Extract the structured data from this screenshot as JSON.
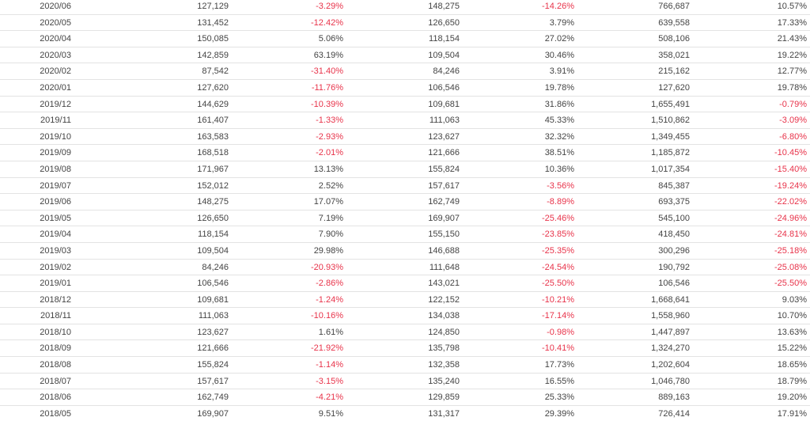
{
  "colors": {
    "negative": "#e8334a",
    "text": "#444444",
    "border": "#e3e3e3"
  },
  "rows": [
    [
      "2020/06",
      "127,129",
      "-3.29%",
      "148,275",
      "-14.26%",
      "766,687",
      "10.57%"
    ],
    [
      "2020/05",
      "131,452",
      "-12.42%",
      "126,650",
      "3.79%",
      "639,558",
      "17.33%"
    ],
    [
      "2020/04",
      "150,085",
      "5.06%",
      "118,154",
      "27.02%",
      "508,106",
      "21.43%"
    ],
    [
      "2020/03",
      "142,859",
      "63.19%",
      "109,504",
      "30.46%",
      "358,021",
      "19.22%"
    ],
    [
      "2020/02",
      "87,542",
      "-31.40%",
      "84,246",
      "3.91%",
      "215,162",
      "12.77%"
    ],
    [
      "2020/01",
      "127,620",
      "-11.76%",
      "106,546",
      "19.78%",
      "127,620",
      "19.78%"
    ],
    [
      "2019/12",
      "144,629",
      "-10.39%",
      "109,681",
      "31.86%",
      "1,655,491",
      "-0.79%"
    ],
    [
      "2019/11",
      "161,407",
      "-1.33%",
      "111,063",
      "45.33%",
      "1,510,862",
      "-3.09%"
    ],
    [
      "2019/10",
      "163,583",
      "-2.93%",
      "123,627",
      "32.32%",
      "1,349,455",
      "-6.80%"
    ],
    [
      "2019/09",
      "168,518",
      "-2.01%",
      "121,666",
      "38.51%",
      "1,185,872",
      "-10.45%"
    ],
    [
      "2019/08",
      "171,967",
      "13.13%",
      "155,824",
      "10.36%",
      "1,017,354",
      "-15.40%"
    ],
    [
      "2019/07",
      "152,012",
      "2.52%",
      "157,617",
      "-3.56%",
      "845,387",
      "-19.24%"
    ],
    [
      "2019/06",
      "148,275",
      "17.07%",
      "162,749",
      "-8.89%",
      "693,375",
      "-22.02%"
    ],
    [
      "2019/05",
      "126,650",
      "7.19%",
      "169,907",
      "-25.46%",
      "545,100",
      "-24.96%"
    ],
    [
      "2019/04",
      "118,154",
      "7.90%",
      "155,150",
      "-23.85%",
      "418,450",
      "-24.81%"
    ],
    [
      "2019/03",
      "109,504",
      "29.98%",
      "146,688",
      "-25.35%",
      "300,296",
      "-25.18%"
    ],
    [
      "2019/02",
      "84,246",
      "-20.93%",
      "111,648",
      "-24.54%",
      "190,792",
      "-25.08%"
    ],
    [
      "2019/01",
      "106,546",
      "-2.86%",
      "143,021",
      "-25.50%",
      "106,546",
      "-25.50%"
    ],
    [
      "2018/12",
      "109,681",
      "-1.24%",
      "122,152",
      "-10.21%",
      "1,668,641",
      "9.03%"
    ],
    [
      "2018/11",
      "111,063",
      "-10.16%",
      "134,038",
      "-17.14%",
      "1,558,960",
      "10.70%"
    ],
    [
      "2018/10",
      "123,627",
      "1.61%",
      "124,850",
      "-0.98%",
      "1,447,897",
      "13.63%"
    ],
    [
      "2018/09",
      "121,666",
      "-21.92%",
      "135,798",
      "-10.41%",
      "1,324,270",
      "15.22%"
    ],
    [
      "2018/08",
      "155,824",
      "-1.14%",
      "132,358",
      "17.73%",
      "1,202,604",
      "18.65%"
    ],
    [
      "2018/07",
      "157,617",
      "-3.15%",
      "135,240",
      "16.55%",
      "1,046,780",
      "18.79%"
    ],
    [
      "2018/06",
      "162,749",
      "-4.21%",
      "129,859",
      "25.33%",
      "889,163",
      "19.20%"
    ],
    [
      "2018/05",
      "169,907",
      "9.51%",
      "131,317",
      "29.39%",
      "726,414",
      "17.91%"
    ]
  ]
}
